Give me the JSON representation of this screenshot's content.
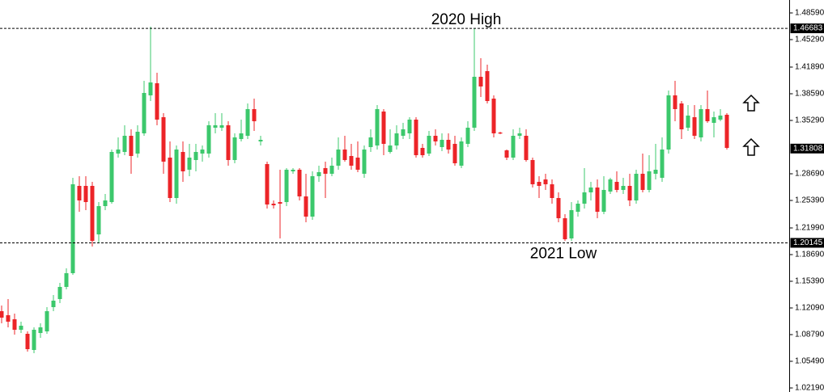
{
  "chart_data": {
    "type": "candlestick",
    "open": [
      1.1169,
      1.1119,
      1.1069,
      1.0939,
      1.0889,
      1.0689,
      1.0899,
      1.0919,
      1.1219,
      1.1319,
      1.1469,
      1.1639,
      1.2719,
      1.2719,
      1.2719,
      1.2119,
      1.2469,
      1.2519,
      1.3119,
      1.3139,
      1.3339,
      1.3119,
      1.3369,
      1.3839,
      1.3989,
      1.3569,
      1.3069,
      1.2569,
      1.3139,
      1.2919,
      1.3039,
      1.3119,
      1.3119,
      1.3439,
      1.3439,
      1.3469,
      1.3039,
      1.3299,
      1.3339,
      1.3669,
      1.3269,
      1.2989,
      1.2499,
      1.2519,
      1.2519,
      1.2899,
      1.2919,
      1.2589,
      1.2339,
      1.2839,
      1.2939,
      1.2869,
      1.2969,
      1.3169,
      1.3089,
      1.3069,
      1.2869,
      1.3199,
      1.3219,
      1.3639,
      1.3139,
      1.3219,
      1.3339,
      1.3369,
      1.3539,
      1.3189,
      1.3119,
      1.3339,
      1.3199,
      1.3289,
      1.3239,
      1.2969,
      1.3239,
      1.3439,
      1.4069,
      1.4139,
      1.3799,
      1.3379,
      1.3159,
      1.3069,
      1.3339,
      1.3339,
      1.3039,
      1.2769,
      1.2799,
      1.2739,
      1.2569,
      1.2319,
      1.2069,
      1.2399,
      1.2499,
      1.2639,
      1.2699,
      1.2399,
      1.2649,
      1.2769,
      1.2669,
      1.2719,
      1.2539,
      1.2869,
      1.2669,
      1.2869,
      1.2819,
      1.3169,
      1.3839,
      1.3739,
      1.3439,
      1.3569,
      1.3319,
      1.3669,
      1.3499,
      1.3539,
      1.3599
    ],
    "high": [
      1.1239,
      1.1319,
      1.1139,
      1.1039,
      1.0919,
      1.0969,
      1.1019,
      1.1219,
      1.1369,
      1.1519,
      1.1699,
      1.2819,
      1.2839,
      1.2839,
      1.2769,
      1.2519,
      1.2619,
      1.3169,
      1.3319,
      1.3469,
      1.3419,
      1.3469,
      1.4019,
      1.4689,
      1.4119,
      1.3619,
      1.3269,
      1.3219,
      1.3269,
      1.3239,
      1.3239,
      1.3219,
      1.3519,
      1.3619,
      1.3619,
      1.3519,
      1.3369,
      1.3539,
      1.3739,
      1.3799,
      1.3339,
      1.3019,
      1.2539,
      1.2919,
      1.2939,
      1.2939,
      1.2939,
      1.2869,
      1.2899,
      1.2969,
      1.3019,
      1.3069,
      1.3319,
      1.3339,
      1.3239,
      1.3269,
      1.3219,
      1.3419,
      1.3719,
      1.3669,
      1.3419,
      1.3469,
      1.3499,
      1.3569,
      1.3569,
      1.3239,
      1.3399,
      1.3419,
      1.3369,
      1.3369,
      1.3339,
      1.3319,
      1.3519,
      1.4669,
      1.4299,
      1.4219,
      1.3839,
      1.3389,
      1.3169,
      1.3419,
      1.3439,
      1.3419,
      1.3069,
      1.2839,
      1.2869,
      1.2799,
      1.2639,
      1.2369,
      1.2519,
      1.2539,
      1.2939,
      1.2769,
      1.2799,
      1.2839,
      1.2819,
      1.2899,
      1.2819,
      1.2869,
      1.2919,
      1.3119,
      1.3099,
      1.3239,
      1.3319,
      1.3899,
      1.4019,
      1.3769,
      1.3719,
      1.3719,
      1.3719,
      1.3899,
      1.3639,
      1.3669,
      1.3619
    ],
    "low": [
      1.1019,
      1.0969,
      1.0879,
      1.0899,
      1.0669,
      1.0649,
      1.0839,
      1.0889,
      1.1169,
      1.1269,
      1.1439,
      1.1619,
      1.2399,
      1.2419,
      1.1969,
      1.2019,
      1.2419,
      1.2499,
      1.3069,
      1.3099,
      1.2869,
      1.3069,
      1.3339,
      1.3769,
      1.3469,
      1.2869,
      1.2519,
      1.2499,
      1.2769,
      1.2839,
      1.2899,
      1.3019,
      1.3069,
      1.3369,
      1.3399,
      1.2969,
      1.2999,
      1.3269,
      1.3299,
      1.3399,
      1.3219,
      1.2439,
      1.2439,
      1.2069,
      1.2469,
      1.2869,
      1.2539,
      1.2269,
      1.2299,
      1.2769,
      1.2569,
      1.2839,
      1.2919,
      1.3019,
      1.2919,
      1.2889,
      1.2819,
      1.3139,
      1.3169,
      1.3099,
      1.3119,
      1.3169,
      1.3299,
      1.3299,
      1.3069,
      1.3069,
      1.3089,
      1.3219,
      1.3149,
      1.3119,
      1.2969,
      1.2939,
      1.3199,
      1.3399,
      1.3819,
      1.3739,
      1.3319,
      1.3359,
      1.3039,
      1.3039,
      1.3299,
      1.3019,
      1.2699,
      1.2569,
      1.2669,
      1.2499,
      1.2269,
      1.2039,
      1.2039,
      1.2339,
      1.2439,
      1.2539,
      1.2319,
      1.2369,
      1.2619,
      1.2639,
      1.2619,
      1.2469,
      1.2499,
      1.2639,
      1.2639,
      1.2799,
      1.2769,
      1.3119,
      1.3519,
      1.3299,
      1.3399,
      1.3299,
      1.3269,
      1.3499,
      1.3319,
      1.3519,
      1.3169
    ],
    "close": [
      1.1089,
      1.1039,
      1.0939,
      1.0989,
      1.0699,
      1.0939,
      1.0969,
      1.1169,
      1.1299,
      1.1469,
      1.1639,
      1.2739,
      1.2539,
      1.2519,
      1.2039,
      1.2469,
      1.2539,
      1.3139,
      1.3169,
      1.3339,
      1.3089,
      1.3389,
      1.3869,
      1.3999,
      1.3539,
      1.3019,
      1.2569,
      1.3169,
      1.2899,
      1.3069,
      1.3139,
      1.3169,
      1.3469,
      1.3469,
      1.3469,
      1.3039,
      1.3319,
      1.3369,
      1.3669,
      1.3519,
      1.3289,
      1.2489,
      1.2479,
      1.2499,
      1.2919,
      1.2919,
      1.2589,
      1.2339,
      1.2839,
      1.2889,
      1.2869,
      1.2969,
      1.3169,
      1.3039,
      1.2969,
      1.2919,
      1.3169,
      1.3319,
      1.3669,
      1.3239,
      1.3219,
      1.3369,
      1.3419,
      1.3539,
      1.3099,
      1.3099,
      1.3339,
      1.3269,
      1.3289,
      1.3169,
      1.2999,
      1.3269,
      1.3439,
      1.4069,
      1.3949,
      1.3769,
      1.3369,
      1.3369,
      1.3069,
      1.3339,
      1.3369,
      1.3039,
      1.2739,
      1.2719,
      1.2739,
      1.2569,
      1.2319,
      1.2059,
      1.2419,
      1.2499,
      1.2639,
      1.2699,
      1.2399,
      1.2669,
      1.2799,
      1.2669,
      1.2719,
      1.2539,
      1.2869,
      1.2669,
      1.2899,
      1.2919,
      1.3169,
      1.3839,
      1.3669,
      1.3419,
      1.3589,
      1.3339,
      1.3669,
      1.3519,
      1.3569,
      1.3589,
      1.3189
    ],
    "up_color": "#3cc86c",
    "down_color": "#ec2428",
    "ylim": [
      1.0169,
      1.5019
    ],
    "yticks": [
      {
        "value": 1.4859,
        "label": "1.48590"
      },
      {
        "value": 1.4529,
        "label": "1.45290"
      },
      {
        "value": 1.4189,
        "label": "1.41890"
      },
      {
        "value": 1.3859,
        "label": "1.38590"
      },
      {
        "value": 1.3529,
        "label": "1.35290"
      },
      {
        "value": 1.2869,
        "label": "1.28690"
      },
      {
        "value": 1.2539,
        "label": "1.25390"
      },
      {
        "value": 1.2199,
        "label": "1.21990"
      },
      {
        "value": 1.1869,
        "label": "1.18690"
      },
      {
        "value": 1.1539,
        "label": "1.15390"
      },
      {
        "value": 1.1209,
        "label": "1.12090"
      },
      {
        "value": 1.0879,
        "label": "1.08790"
      },
      {
        "value": 1.0549,
        "label": "1.05490"
      },
      {
        "value": 1.0219,
        "label": "1.02190"
      }
    ],
    "levels": [
      {
        "value": 1.46683,
        "label": "1.46683",
        "annotation": "2020 High"
      },
      {
        "value": 1.20145,
        "label": "1.20145",
        "annotation": "2021 Low"
      }
    ],
    "last_price": {
      "value": 1.31808,
      "label": "1.31808"
    }
  }
}
